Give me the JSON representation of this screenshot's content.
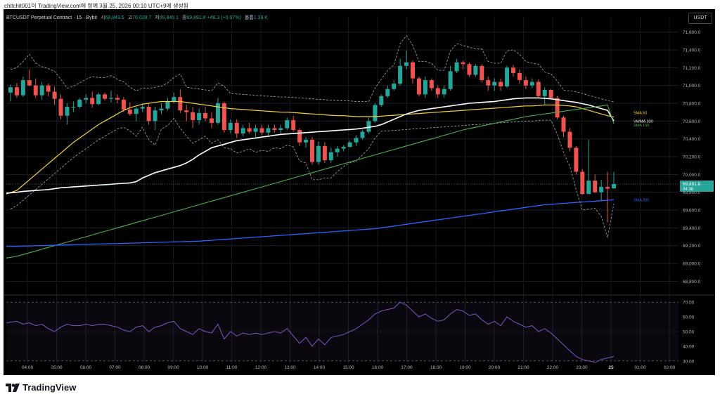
{
  "header_text": "chitchit001이 TradingView.com에 함께 3월 25, 2026 00:10 UTC+9에 생성됨",
  "legend": {
    "symbol": "BTCUSDT Perpetual Contract · 15 · Bybit",
    "o_label": "시",
    "o_value": "69,843.5",
    "h_label": "고",
    "h_value": "70,028.7",
    "l_label": "저",
    "l_value": "69,840.1",
    "c_label": "종",
    "c_value": "69,891.8",
    "change": "+48.3 (+0.07%)",
    "vol_label": "볼륨",
    "vol_value": "1.39 K"
  },
  "currency_button": "USDT",
  "price_label": "69,891.8",
  "countdown_label": "04:36",
  "brand": "TradingView",
  "colors": {
    "up": "#26a69a",
    "down": "#ef5350",
    "sma50": "#f5d33a",
    "vwma100": "#ffffff",
    "sma150": "#4caf50",
    "sma300": "#2962ff",
    "rsi": "#7e57c2"
  },
  "chart_data": {
    "type": "candlestick",
    "x_ticks": [
      "04:00",
      "05:00",
      "06:00",
      "07:00",
      "08:00",
      "09:00",
      "10:00",
      "11:00",
      "12:00",
      "13:00",
      "14:00",
      "15:00",
      "16:00",
      "17:00",
      "18:00",
      "19:00",
      "20:00",
      "21:00",
      "22:00",
      "23:00",
      "25",
      "01:00",
      "02:00"
    ],
    "y_ticks": [
      "71,600.0",
      "71,400.0",
      "71,200.0",
      "71,000.0",
      "70,800.0",
      "70,600.0",
      "70,400.0",
      "70,200.0",
      "70,000.0",
      "69,800.0",
      "69,600.0",
      "69,400.0",
      "69,200.0",
      "69,000.0",
      "68,800.0"
    ],
    "ylim": [
      68700,
      71700
    ],
    "candles": [
      [
        70920,
        71010,
        70820,
        70980
      ],
      [
        70980,
        71030,
        70860,
        70890
      ],
      [
        70890,
        71100,
        70870,
        71060
      ],
      [
        71060,
        71180,
        70990,
        71000
      ],
      [
        71000,
        71080,
        70860,
        70890
      ],
      [
        70890,
        71040,
        70840,
        71000
      ],
      [
        71000,
        71020,
        70880,
        70930
      ],
      [
        70930,
        70990,
        70780,
        70850
      ],
      [
        70850,
        70900,
        70620,
        70660
      ],
      [
        70660,
        70800,
        70560,
        70760
      ],
      [
        70760,
        70820,
        70700,
        70760
      ],
      [
        70760,
        70860,
        70740,
        70840
      ],
      [
        70840,
        70900,
        70800,
        70860
      ],
      [
        70860,
        70930,
        70750,
        70790
      ],
      [
        70790,
        70920,
        70780,
        70900
      ],
      [
        70900,
        70920,
        70830,
        70850
      ],
      [
        70850,
        70940,
        70810,
        70860
      ],
      [
        70860,
        70900,
        70800,
        70840
      ],
      [
        70840,
        70870,
        70700,
        70730
      ],
      [
        70730,
        70810,
        70660,
        70680
      ],
      [
        70680,
        70760,
        70600,
        70740
      ],
      [
        70740,
        70800,
        70700,
        70760
      ],
      [
        70760,
        70800,
        70560,
        70600
      ],
      [
        70600,
        70760,
        70500,
        70720
      ],
      [
        70720,
        70800,
        70680,
        70740
      ],
      [
        70740,
        70860,
        70720,
        70820
      ],
      [
        70820,
        70920,
        70800,
        70870
      ],
      [
        70870,
        70960,
        70690,
        70720
      ],
      [
        70720,
        70780,
        70600,
        70700
      ],
      [
        70700,
        70760,
        70520,
        70610
      ],
      [
        70610,
        70740,
        70560,
        70690
      ],
      [
        70690,
        70760,
        70600,
        70630
      ],
      [
        70630,
        70700,
        70520,
        70580
      ],
      [
        70580,
        70860,
        70560,
        70800
      ],
      [
        70800,
        70820,
        70470,
        70500
      ],
      [
        70500,
        70620,
        70460,
        70580
      ],
      [
        70580,
        70620,
        70410,
        70460
      ],
      [
        70460,
        70560,
        70430,
        70520
      ],
      [
        70520,
        70580,
        70460,
        70480
      ],
      [
        70480,
        70560,
        70420,
        70520
      ],
      [
        70520,
        70560,
        70440,
        70470
      ],
      [
        70470,
        70560,
        70430,
        70520
      ],
      [
        70520,
        70560,
        70470,
        70500
      ],
      [
        70500,
        70560,
        70460,
        70520
      ],
      [
        70520,
        70640,
        70500,
        70610
      ],
      [
        70610,
        70660,
        70480,
        70500
      ],
      [
        70500,
        70520,
        70320,
        70360
      ],
      [
        70360,
        70420,
        70300,
        70390
      ],
      [
        70390,
        70420,
        70110,
        70140
      ],
      [
        70140,
        70370,
        70110,
        70320
      ],
      [
        70320,
        70360,
        70130,
        70160
      ],
      [
        70160,
        70300,
        70130,
        70250
      ],
      [
        70250,
        70320,
        70200,
        70290
      ],
      [
        70290,
        70330,
        70260,
        70310
      ],
      [
        70310,
        70380,
        70300,
        70360
      ],
      [
        70360,
        70440,
        70320,
        70410
      ],
      [
        70410,
        70500,
        70390,
        70480
      ],
      [
        70480,
        70640,
        70460,
        70600
      ],
      [
        70600,
        70800,
        70580,
        70780
      ],
      [
        70780,
        70900,
        70760,
        70880
      ],
      [
        70880,
        71000,
        70860,
        70960
      ],
      [
        70960,
        71060,
        70940,
        71020
      ],
      [
        71020,
        71300,
        71000,
        71220
      ],
      [
        71220,
        71390,
        71180,
        71260
      ],
      [
        71260,
        71280,
        71020,
        71080
      ],
      [
        71080,
        71100,
        70880,
        70900
      ],
      [
        70900,
        71100,
        70860,
        71060
      ],
      [
        71060,
        71080,
        70940,
        70970
      ],
      [
        70970,
        71000,
        70860,
        70900
      ],
      [
        70900,
        71000,
        70860,
        70960
      ],
      [
        70960,
        71220,
        70940,
        71160
      ],
      [
        71160,
        71300,
        71140,
        71260
      ],
      [
        71260,
        71280,
        71180,
        71240
      ],
      [
        71240,
        71260,
        71100,
        71120
      ],
      [
        71120,
        71240,
        71100,
        71220
      ],
      [
        71220,
        71240,
        71030,
        71060
      ],
      [
        71060,
        71100,
        70940,
        71000
      ],
      [
        71000,
        71080,
        70940,
        71040
      ],
      [
        71040,
        71080,
        70940,
        70990
      ],
      [
        70990,
        71220,
        70970,
        71200
      ],
      [
        71200,
        71230,
        71100,
        71140
      ],
      [
        71140,
        71180,
        71020,
        71060
      ],
      [
        71060,
        71100,
        70960,
        71000
      ],
      [
        71000,
        71080,
        70970,
        71040
      ],
      [
        71040,
        71070,
        70860,
        70880
      ],
      [
        70880,
        70980,
        70780,
        70950
      ],
      [
        70950,
        70960,
        70840,
        70860
      ],
      [
        70860,
        70880,
        70620,
        70640
      ],
      [
        70640,
        70660,
        70420,
        70480
      ],
      [
        70480,
        70520,
        70260,
        70300
      ],
      [
        70300,
        70320,
        70000,
        70030
      ],
      [
        70030,
        70060,
        69770,
        69780
      ],
      [
        69780,
        70390,
        69780,
        69930
      ],
      [
        69930,
        70000,
        69790,
        69800
      ],
      [
        69800,
        69940,
        69700,
        69860
      ],
      [
        69860,
        70030,
        69460,
        69840
      ],
      [
        69843.5,
        70028.7,
        69840.1,
        69891.8
      ]
    ],
    "series": [
      {
        "name": "SMA 50",
        "values": [
          69780,
          69820,
          69880,
          69940,
          70000,
          70060,
          70120,
          70180,
          70240,
          70300,
          70360,
          70410,
          70460,
          70510,
          70560,
          70600,
          70640,
          70680,
          70720,
          70750,
          70770,
          70790,
          70800,
          70810,
          70820,
          70820,
          70820,
          70820,
          70810,
          70800,
          70790,
          70780,
          70770,
          70760,
          70750,
          70740,
          70735,
          70730,
          70725,
          70720,
          70715,
          70710,
          70705,
          70700,
          70700,
          70695,
          70690,
          70685,
          70680,
          70675,
          70670,
          70665,
          70660,
          70660,
          70655,
          70650,
          70650,
          70650,
          70650,
          70655,
          70660,
          70665,
          70670,
          70675,
          70680,
          70685,
          70690,
          70695,
          70700,
          70705,
          70710,
          70715,
          70720,
          70725,
          70730,
          70735,
          70740,
          70745,
          70750,
          70755,
          70760,
          70765,
          70770,
          70770,
          70775,
          70780,
          70780,
          70780,
          70775,
          70770,
          70760,
          70740,
          70720,
          70700,
          70680,
          70660,
          70645
        ]
      },
      {
        "name": "VWMA 100",
        "values": [
          69790,
          69800,
          69810,
          69815,
          69820,
          69825,
          69830,
          69840,
          69850,
          69855,
          69860,
          69865,
          69870,
          69875,
          69880,
          69885,
          69890,
          69895,
          69900,
          69905,
          69920,
          69960,
          69990,
          70020,
          70040,
          70060,
          70080,
          70100,
          70130,
          70170,
          70220,
          70260,
          70300,
          70320,
          70340,
          70360,
          70380,
          70390,
          70400,
          70410,
          70420,
          70430,
          70440,
          70450,
          70455,
          70460,
          70465,
          70470,
          70475,
          70480,
          70485,
          70490,
          70495,
          70500,
          70505,
          70510,
          70520,
          70530,
          70540,
          70560,
          70590,
          70620,
          70650,
          70680,
          70700,
          70720,
          70730,
          70740,
          70750,
          70760,
          70770,
          70780,
          70790,
          70800,
          70805,
          70810,
          70815,
          70820,
          70830,
          70840,
          70850,
          70855,
          70860,
          70860,
          70860,
          70855,
          70850,
          70840,
          70830,
          70820,
          70810,
          70795,
          70780,
          70760,
          70740,
          70720,
          70600
        ]
      },
      {
        "name": "SMA 150",
        "values": [
          69060,
          69080,
          69100,
          69120,
          69140,
          69160,
          69180,
          69200,
          69220,
          69240,
          69260,
          69280,
          69300,
          69320,
          69340,
          69360,
          69380,
          69400,
          69420,
          69440,
          69460,
          69480,
          69500,
          69520,
          69540,
          69560,
          69580,
          69600,
          69620,
          69640,
          69660,
          69680,
          69700,
          69720,
          69740,
          69760,
          69780,
          69800,
          69820,
          69840,
          69860,
          69880,
          69900,
          69920,
          69940,
          69960,
          69980,
          70000,
          70020,
          70040,
          70060,
          70080,
          70100,
          70120,
          70140,
          70160,
          70180,
          70200,
          70220,
          70240,
          70260,
          70280,
          70300,
          70320,
          70340,
          70360,
          70380,
          70400,
          70420,
          70440,
          70460,
          70480,
          70500,
          70515,
          70530,
          70545,
          70560,
          70575,
          70590,
          70605,
          70620,
          70635,
          70650,
          70660,
          70670,
          70680,
          70690,
          70700,
          70710,
          70720,
          70730,
          70740,
          70750,
          70760,
          70770,
          70780,
          70570
        ]
      },
      {
        "name": "SMA 300",
        "values": [
          69190,
          69192,
          69194,
          69196,
          69198,
          69200,
          69202,
          69204,
          69206,
          69208,
          69210,
          69212,
          69214,
          69216,
          69218,
          69220,
          69222,
          69224,
          69226,
          69228,
          69230,
          69232,
          69234,
          69236,
          69238,
          69240,
          69242,
          69244,
          69246,
          69248,
          69250,
          69255,
          69260,
          69265,
          69270,
          69275,
          69280,
          69285,
          69290,
          69295,
          69300,
          69305,
          69310,
          69315,
          69320,
          69325,
          69330,
          69335,
          69340,
          69345,
          69350,
          69355,
          69360,
          69365,
          69370,
          69375,
          69380,
          69385,
          69390,
          69400,
          69410,
          69420,
          69430,
          69440,
          69450,
          69460,
          69470,
          69480,
          69490,
          69500,
          69510,
          69520,
          69530,
          69540,
          69550,
          69560,
          69570,
          69580,
          69590,
          69600,
          69610,
          69620,
          69630,
          69640,
          69650,
          69660,
          69665,
          69670,
          69675,
          69680,
          69685,
          69690,
          69695,
          69700,
          69705,
          69710,
          69715
        ]
      }
    ],
    "rsi": {
      "y_ticks": [
        "70.00",
        "60.00",
        "50.00",
        "40.00",
        "30.00"
      ],
      "ylim": [
        28,
        72
      ],
      "values": [
        56,
        57,
        55,
        56,
        54,
        55,
        52,
        50,
        53,
        55,
        54,
        54,
        55,
        54,
        55,
        55,
        54,
        53,
        51,
        50,
        53,
        54,
        50,
        53,
        54,
        56,
        57,
        52,
        50,
        48,
        52,
        50,
        49,
        55,
        45,
        50,
        47,
        49,
        48,
        49,
        48,
        49,
        50,
        49,
        52,
        47,
        42,
        46,
        40,
        45,
        41,
        46,
        47,
        48,
        50,
        52,
        55,
        58,
        62,
        64,
        65,
        66,
        70,
        68,
        64,
        60,
        62,
        59,
        57,
        58,
        62,
        65,
        64,
        61,
        62,
        58,
        55,
        57,
        54,
        60,
        57,
        55,
        53,
        54,
        50,
        52,
        49,
        45,
        41,
        37,
        33,
        31,
        30,
        29,
        31,
        32,
        33
      ]
    }
  }
}
